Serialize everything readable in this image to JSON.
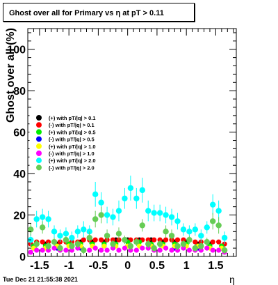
{
  "title": "Ghost over all for Primary vs   η at pT > 0.11",
  "timestamp": "Tue Dec 21 21:55:38 2021",
  "chart_data": {
    "type": "scatter",
    "title": "Ghost over all for Primary vs   η at pT > 0.11",
    "xlabel": "η",
    "ylabel": "Ghost over all (%)",
    "xlim": [
      -1.7,
      1.85
    ],
    "ylim": [
      0,
      110
    ],
    "x_ticks": [
      "-1.5",
      "-1",
      "-0.5",
      "0",
      "0.5",
      "1",
      "1.5"
    ],
    "x_tick_values": [
      -1.5,
      -1,
      -0.5,
      0,
      0.5,
      1,
      1.5
    ],
    "y_ticks": [
      "0",
      "20",
      "40",
      "60",
      "80",
      "100"
    ],
    "y_tick_values": [
      0,
      20,
      40,
      60,
      80,
      100
    ],
    "legend_position": "left-middle",
    "grid": false,
    "series": [
      {
        "name": "(+) with pT/|q| > 0.1",
        "color": "#000000",
        "x": [
          -1.6,
          -1.4,
          -1.2,
          -1.0,
          -0.8,
          -0.6,
          -0.4,
          -0.2,
          0.0,
          0.2,
          0.4,
          0.6,
          0.8,
          1.0,
          1.2,
          1.4,
          1.6
        ],
        "values": [
          5,
          6,
          6,
          6,
          7,
          7,
          7,
          8,
          8,
          8,
          8,
          7,
          7,
          7,
          6,
          6,
          5
        ]
      },
      {
        "name": "(-) with pT/|q| > 0.1",
        "color": "#ff0000",
        "x": [
          -1.65,
          -1.55,
          -1.45,
          -1.35,
          -1.25,
          -1.15,
          -1.05,
          -0.95,
          -0.85,
          -0.75,
          -0.65,
          -0.55,
          -0.45,
          -0.35,
          -0.25,
          -0.15,
          -0.05,
          0.05,
          0.15,
          0.25,
          0.35,
          0.45,
          0.55,
          0.65,
          0.75,
          0.85,
          0.95,
          1.05,
          1.15,
          1.25,
          1.35,
          1.45,
          1.55,
          1.65
        ],
        "values": [
          6,
          7,
          7,
          7,
          7,
          7,
          7,
          7,
          7,
          8,
          8,
          8,
          8,
          8,
          8,
          8,
          8,
          8,
          8,
          8,
          8,
          8,
          8,
          8,
          8,
          8,
          8,
          8,
          7,
          7,
          7,
          7,
          7,
          6
        ]
      },
      {
        "name": "(+) with pT/|q| > 0.5",
        "color": "#00ee00",
        "x": [
          -1.6,
          -1.4,
          -1.2,
          -1.0,
          -0.8,
          -0.6,
          -0.4,
          -0.2,
          0.0,
          0.2,
          0.4,
          0.6,
          0.8,
          1.0,
          1.2,
          1.4,
          1.6
        ],
        "values": [
          5,
          5,
          5,
          6,
          6,
          6,
          6,
          6,
          7,
          7,
          6,
          6,
          6,
          6,
          5,
          5,
          5
        ]
      },
      {
        "name": "(-) with pT/|q| > 0.5",
        "color": "#0000ff",
        "x": [
          -1.6,
          -1.2,
          -0.8,
          -0.4,
          0.0,
          0.4,
          0.8,
          1.2,
          1.6
        ],
        "values": [
          4,
          4,
          4,
          5,
          5,
          5,
          4,
          4,
          4
        ]
      },
      {
        "name": "(+) with pT/|q| > 1.0",
        "color": "#ffff00",
        "x": [
          -1.6,
          -1.4,
          -1.2,
          -1.0,
          -0.8,
          -0.6,
          -0.4,
          -0.2,
          0.0,
          0.2,
          0.4,
          0.6,
          0.8,
          1.0,
          1.2,
          1.4,
          1.6
        ],
        "values": [
          4,
          4,
          5,
          5,
          5,
          5,
          5,
          5,
          5,
          5,
          5,
          5,
          5,
          5,
          5,
          4,
          4
        ]
      },
      {
        "name": "(-) with pT/|q| > 1.0",
        "color": "#ff00ff",
        "x": [
          -1.65,
          -1.55,
          -1.45,
          -1.35,
          -1.25,
          -1.15,
          -1.05,
          -0.95,
          -0.85,
          -0.75,
          -0.65,
          -0.55,
          -0.45,
          -0.35,
          -0.25,
          -0.15,
          -0.05,
          0.05,
          0.15,
          0.25,
          0.35,
          0.45,
          0.55,
          0.65,
          0.75,
          0.85,
          0.95,
          1.05,
          1.15,
          1.25,
          1.35,
          1.45,
          1.55,
          1.65
        ],
        "values": [
          2,
          3,
          3,
          3,
          4,
          3,
          3,
          3,
          4,
          3,
          3,
          4,
          3,
          3,
          4,
          3,
          4,
          3,
          3,
          4,
          4,
          3,
          3,
          4,
          3,
          3,
          4,
          3,
          3,
          3,
          4,
          3,
          3,
          2
        ]
      },
      {
        "name": "(+) with pT/|q| > 2.0",
        "color": "#00ffff",
        "x": [
          -1.65,
          -1.55,
          -1.45,
          -1.35,
          -1.25,
          -1.15,
          -1.05,
          -0.95,
          -0.85,
          -0.75,
          -0.65,
          -0.55,
          -0.45,
          -0.35,
          -0.25,
          -0.15,
          -0.05,
          0.05,
          0.15,
          0.25,
          0.35,
          0.45,
          0.55,
          0.65,
          0.75,
          0.85,
          0.95,
          1.05,
          1.15,
          1.25,
          1.35,
          1.45,
          1.55,
          1.65
        ],
        "values": [
          8,
          18,
          19,
          18,
          12,
          10,
          11,
          9,
          12,
          13,
          12,
          30,
          26,
          20,
          19,
          22,
          28,
          33,
          28,
          32,
          22,
          21,
          21,
          20,
          19,
          17,
          13,
          12,
          13,
          10,
          14,
          25,
          22,
          9
        ],
        "errors": [
          3,
          4,
          4,
          4,
          3,
          3,
          3,
          3,
          3,
          4,
          3,
          6,
          5,
          4,
          4,
          5,
          5,
          6,
          5,
          6,
          5,
          4,
          4,
          4,
          4,
          4,
          3,
          3,
          3,
          3,
          3,
          5,
          5,
          3
        ]
      },
      {
        "name": "(-) with pT/|q| > 2.0",
        "color": "#66cc55",
        "x": [
          -1.65,
          -1.55,
          -1.45,
          -1.35,
          -1.25,
          -1.15,
          -1.05,
          -0.95,
          -0.85,
          -0.75,
          -0.65,
          -0.55,
          -0.45,
          -0.35,
          -0.25,
          -0.15,
          -0.05,
          0.05,
          0.15,
          0.25,
          0.35,
          0.45,
          0.55,
          0.65,
          0.75,
          0.85,
          0.95,
          1.05,
          1.15,
          1.25,
          1.35,
          1.45,
          1.55,
          1.65
        ],
        "values": [
          13,
          6,
          14,
          5,
          7,
          4,
          8,
          5,
          6,
          3,
          9,
          18,
          20,
          10,
          6,
          11,
          8,
          5,
          7,
          15,
          6,
          4,
          6,
          12,
          10,
          5,
          6,
          8,
          4,
          5,
          7,
          17,
          15,
          3
        ],
        "errors": [
          3,
          2,
          3,
          2,
          2,
          2,
          2,
          2,
          2,
          2,
          3,
          4,
          4,
          3,
          2,
          3,
          2,
          2,
          2,
          3,
          2,
          2,
          2,
          3,
          3,
          2,
          2,
          2,
          2,
          2,
          2,
          4,
          4,
          2
        ]
      }
    ]
  }
}
